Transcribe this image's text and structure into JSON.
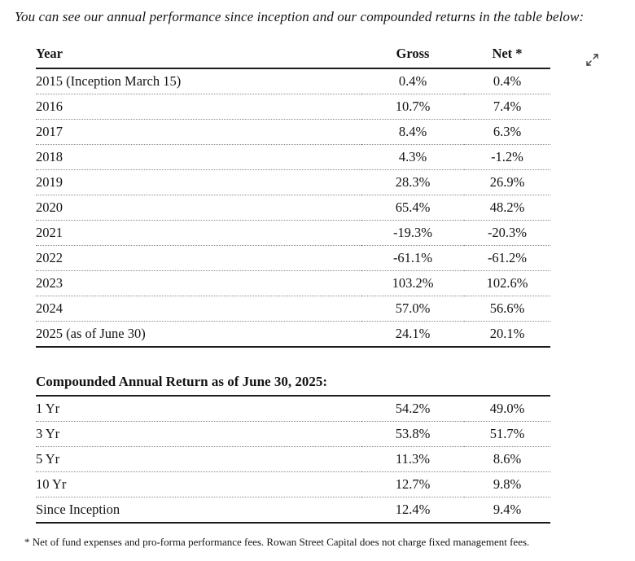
{
  "page": {
    "intro": "You can see our annual performance since inception and our compounded returns in the table below:",
    "footnote": "* Net of fund expenses and pro-forma performance fees.  Rowan Street Capital does not charge fixed management fees."
  },
  "performance_table": {
    "headers": {
      "year": "Year",
      "gross": "Gross",
      "net": "Net *"
    },
    "rows": [
      {
        "year": "2015 (Inception March 15)",
        "gross": "0.4%",
        "net": "0.4%"
      },
      {
        "year": "2016",
        "gross": "10.7%",
        "net": "7.4%"
      },
      {
        "year": "2017",
        "gross": "8.4%",
        "net": "6.3%"
      },
      {
        "year": "2018",
        "gross": "4.3%",
        "net": "-1.2%"
      },
      {
        "year": "2019",
        "gross": "28.3%",
        "net": "26.9%"
      },
      {
        "year": "2020",
        "gross": "65.4%",
        "net": "48.2%"
      },
      {
        "year": "2021",
        "gross": "-19.3%",
        "net": "-20.3%"
      },
      {
        "year": "2022",
        "gross": "-61.1%",
        "net": "-61.2%"
      },
      {
        "year": "2023",
        "gross": "103.2%",
        "net": "102.6%"
      },
      {
        "year": "2024",
        "gross": "57.0%",
        "net": "56.6%"
      },
      {
        "year": "2025 (as of June 30)",
        "gross": "24.1%",
        "net": "20.1%"
      }
    ]
  },
  "compounded_table": {
    "title": "Compounded Annual Return as of June 30, 2025:",
    "rows": [
      {
        "period": "1 Yr",
        "gross": "54.2%",
        "net": "49.0%"
      },
      {
        "period": "3 Yr",
        "gross": "53.8%",
        "net": "51.7%"
      },
      {
        "period": "5 Yr",
        "gross": "11.3%",
        "net": "8.6%"
      },
      {
        "period": "10 Yr",
        "gross": "12.7%",
        "net": "9.8%"
      },
      {
        "period": "Since Inception",
        "gross": "12.4%",
        "net": "9.4%"
      }
    ]
  },
  "icons": {
    "expand": "expand-diagonal-arrows"
  },
  "colors": {
    "text": "#141414",
    "solid_rule": "#1c1c1c",
    "dotted_rule": "#8a8a8a",
    "background": "#ffffff"
  }
}
